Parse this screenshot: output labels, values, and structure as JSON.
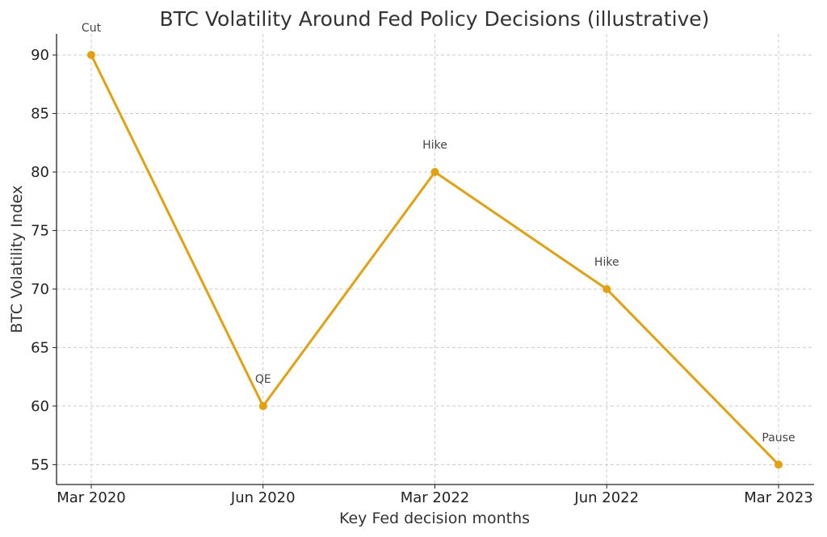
{
  "chart_data": {
    "type": "line",
    "title": "BTC Volatility Around Fed Policy Decisions (illustrative)",
    "xlabel": "Key Fed decision months",
    "ylabel": "BTC Volatility Index",
    "categories": [
      "Mar 2020",
      "Jun 2020",
      "Mar 2022",
      "Jun 2022",
      "Mar 2023"
    ],
    "values": [
      90,
      60,
      80,
      70,
      55
    ],
    "annotations": [
      "Cut",
      "QE",
      "Hike",
      "Hike",
      "Pause"
    ],
    "yticks": [
      55,
      60,
      65,
      70,
      75,
      80,
      85,
      90
    ],
    "ylim": [
      53.3,
      91.8
    ],
    "grid": true,
    "color": "#E5A00D",
    "grid_color": "#cccccc"
  }
}
